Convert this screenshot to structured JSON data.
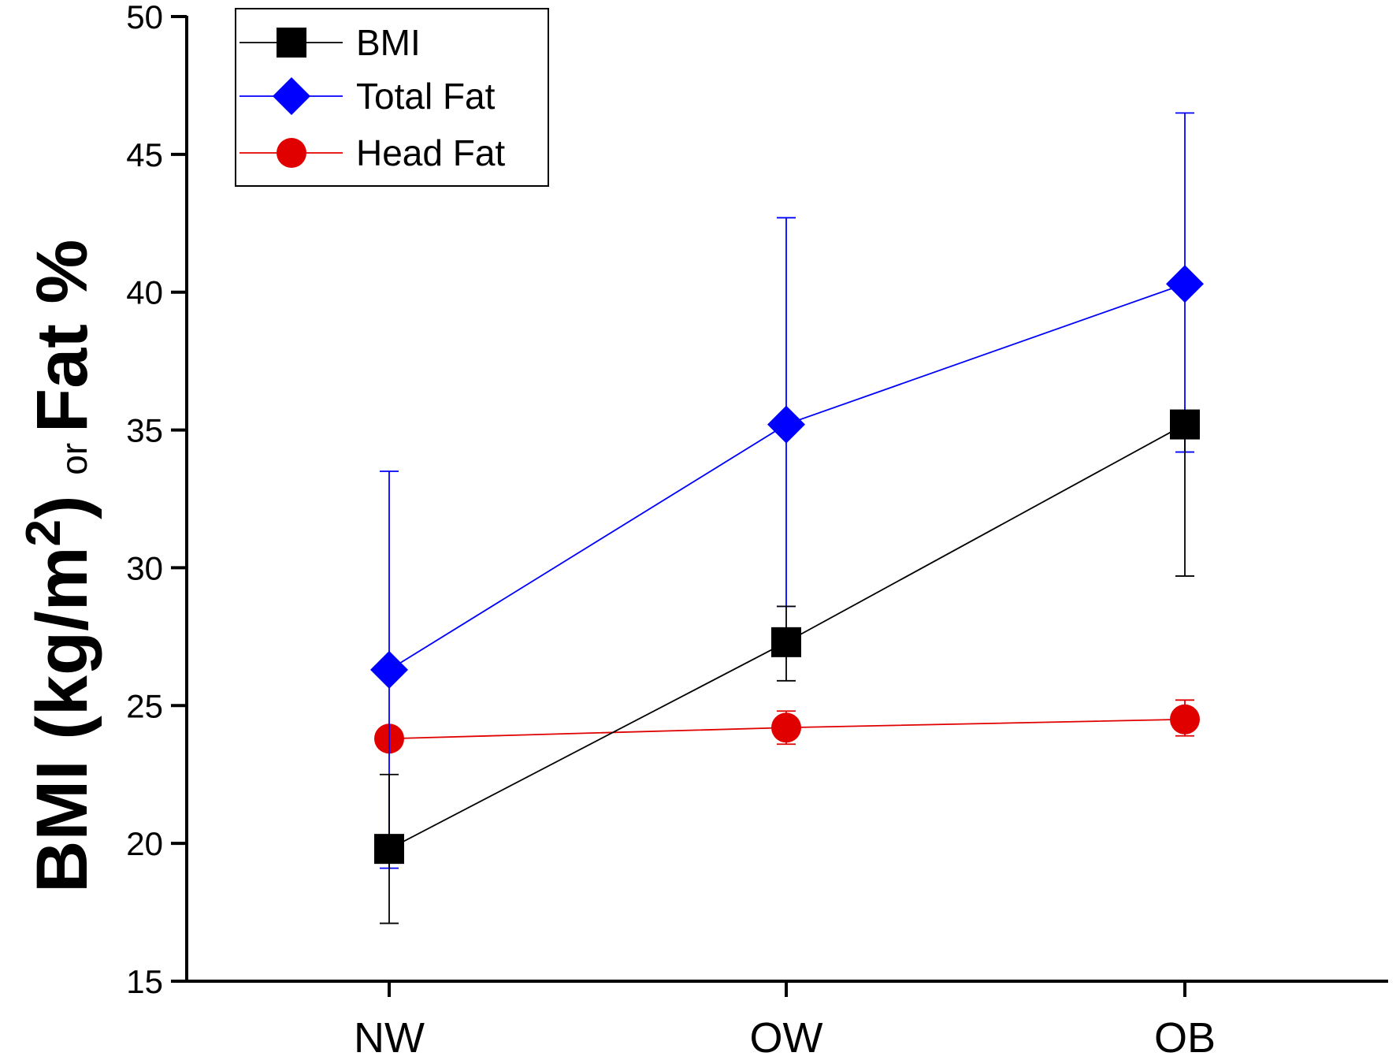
{
  "chart_data": {
    "type": "line",
    "categories": [
      "NW",
      "OW",
      "OB"
    ],
    "ylim": [
      15,
      50
    ],
    "yticks": [
      15,
      20,
      25,
      30,
      35,
      40,
      45,
      50
    ],
    "ytick_labels": [
      "15",
      "20",
      "25",
      "30",
      "35",
      "40",
      "45",
      "50"
    ],
    "ylabel": {
      "part1": "BMI (kg/m",
      "superscript": "2",
      "part2": ")",
      "connector": "or",
      "part3": "Fat %"
    },
    "xlabel": "",
    "grid": false,
    "legend_position": "top-left",
    "series": [
      {
        "name": "BMI",
        "color": "#000000",
        "marker": "square",
        "values": [
          19.8,
          27.3,
          35.2
        ],
        "error_low": [
          17.1,
          25.9,
          29.7
        ],
        "error_high": [
          22.5,
          28.6,
          35.2
        ]
      },
      {
        "name": "Total Fat",
        "color": "#0000ff",
        "marker": "diamond",
        "values": [
          26.3,
          35.2,
          40.3
        ],
        "error_low": [
          19.1,
          28.6,
          34.2
        ],
        "error_high": [
          33.5,
          42.7,
          46.5
        ]
      },
      {
        "name": "Head Fat",
        "color": "#e00000",
        "marker": "circle",
        "values": [
          23.8,
          24.2,
          24.5
        ],
        "error_low": [
          23.8,
          23.6,
          23.9
        ],
        "error_high": [
          23.8,
          24.8,
          25.2
        ]
      }
    ]
  }
}
